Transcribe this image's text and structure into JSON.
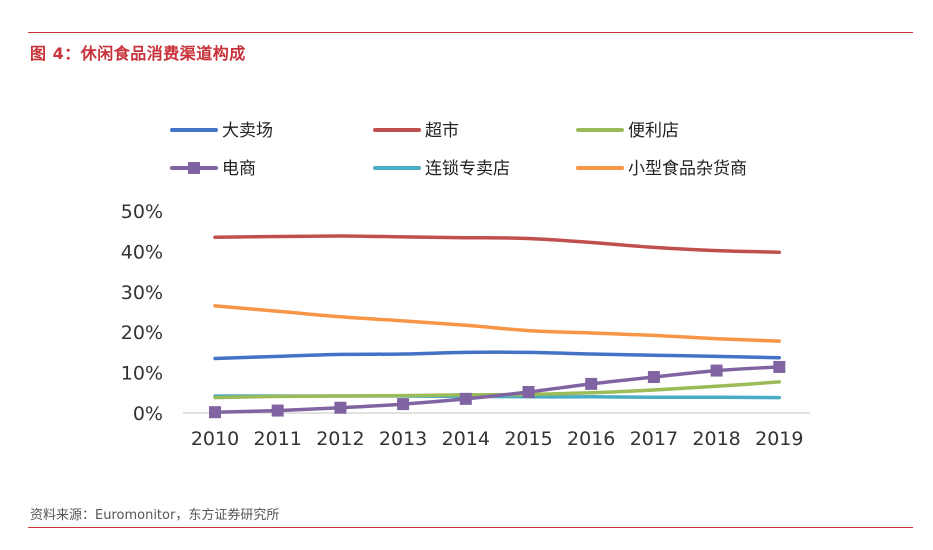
{
  "figure": {
    "title_prefix": "图 4：",
    "title": "休闲食品消费渠道构成",
    "source": "资料来源：Euromonitor，东方证券研究所"
  },
  "chart_data": {
    "type": "line",
    "title": "休闲食品消费渠道构成",
    "xlabel": "",
    "ylabel": "",
    "x": [
      "2010",
      "2011",
      "2012",
      "2013",
      "2014",
      "2015",
      "2016",
      "2017",
      "2018",
      "2019"
    ],
    "ylim": [
      0,
      50
    ],
    "yticks": [
      "0%",
      "10%",
      "20%",
      "30%",
      "40%",
      "50%"
    ],
    "grid": false,
    "legend_position": "top",
    "series": [
      {
        "name": "大卖场",
        "color": "#4472c4",
        "marker": "none",
        "values": [
          13.5,
          14.0,
          14.5,
          14.6,
          15.0,
          15.0,
          14.6,
          14.3,
          14.0,
          13.7
        ]
      },
      {
        "name": "超市",
        "color": "#c0504d",
        "marker": "none",
        "values": [
          43.5,
          43.7,
          43.8,
          43.6,
          43.4,
          43.2,
          42.2,
          41.0,
          40.2,
          39.8
        ]
      },
      {
        "name": "便利店",
        "color": "#9bbb59",
        "marker": "none",
        "values": [
          3.8,
          4.1,
          4.2,
          4.3,
          4.5,
          4.6,
          5.0,
          5.7,
          6.6,
          7.7
        ]
      },
      {
        "name": "电商",
        "color": "#8064a2",
        "marker": "square",
        "values": [
          0.2,
          0.6,
          1.3,
          2.2,
          3.5,
          5.2,
          7.2,
          8.9,
          10.5,
          11.4
        ]
      },
      {
        "name": "连锁专卖店",
        "color": "#4bacc6",
        "marker": "none",
        "values": [
          4.2,
          4.2,
          4.2,
          4.2,
          4.1,
          4.0,
          4.0,
          3.9,
          3.9,
          3.8
        ]
      },
      {
        "name": "小型食品杂货商",
        "color": "#f79646",
        "marker": "none",
        "values": [
          26.5,
          25.2,
          23.8,
          22.8,
          21.7,
          20.4,
          19.8,
          19.2,
          18.4,
          17.8
        ]
      }
    ]
  }
}
